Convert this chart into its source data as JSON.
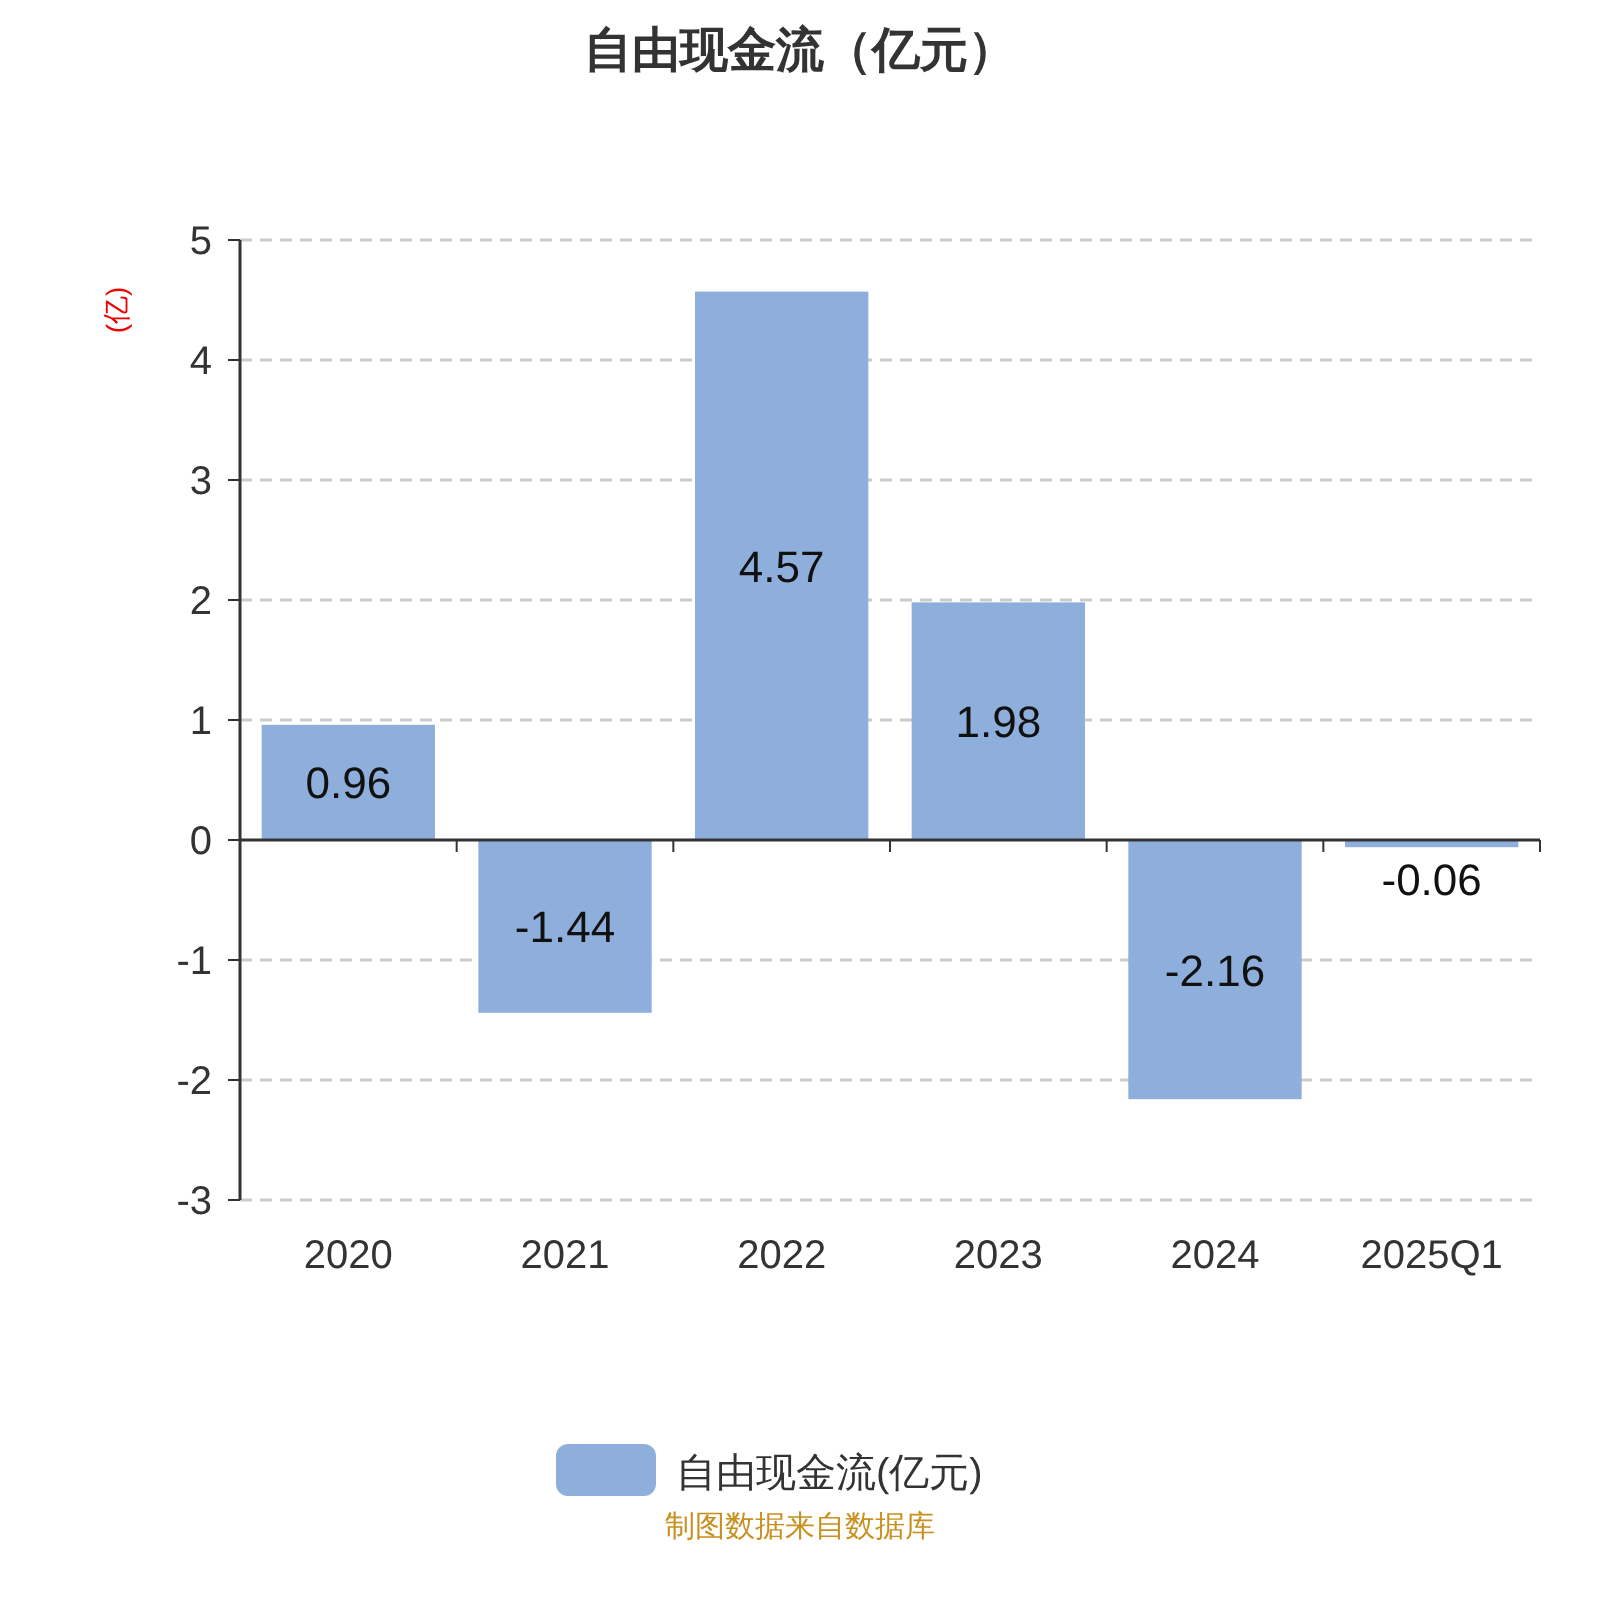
{
  "chart_data": {
    "type": "bar",
    "title": "自由现金流（亿元）",
    "ylabel": "(亿)",
    "categories": [
      "2020",
      "2021",
      "2022",
      "2023",
      "2024",
      "2025Q1"
    ],
    "series": [
      {
        "name": "自由现金流(亿元)",
        "color": "#8eaedb",
        "values": [
          0.96,
          -1.44,
          4.57,
          1.98,
          -2.16,
          -0.06
        ]
      }
    ],
    "ylim": [
      -3,
      5
    ],
    "yticks": [
      -3,
      -2,
      -1,
      0,
      1,
      2,
      3,
      4,
      5
    ],
    "grid": "y",
    "legend": "bottom",
    "data_labels": true,
    "annotations": [
      "制图数据来自数据库"
    ]
  }
}
